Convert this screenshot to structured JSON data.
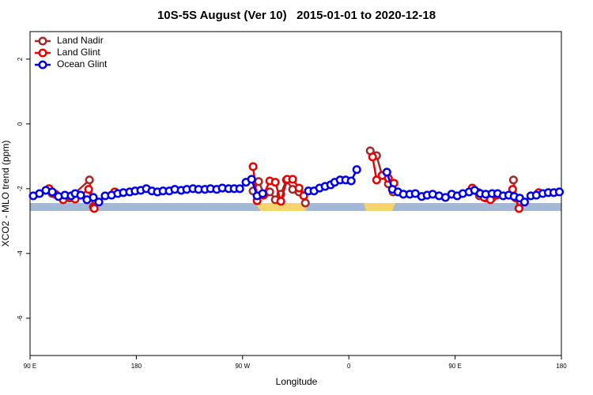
{
  "chart_data": {
    "type": "line",
    "title": "10S-5S August (Ver 10)   2015-01-01 to 2020-12-18",
    "x_label": "Longitude",
    "y_label": "XCO2 - MLO trend (ppm)",
    "xlim": [
      90,
      540
    ],
    "xticks": [
      {
        "value": 90,
        "label": "90 E"
      },
      180,
      {
        "value": 270,
        "label": "90 W"
      },
      {
        "value": 360,
        "label": "0"
      },
      {
        "value": 450,
        "label": "90 E"
      },
      {
        "value": 540,
        "label": "180"
      }
    ],
    "ylim": [
      -7.15,
      2.85
    ],
    "yticks": [
      2,
      0,
      -2,
      -4,
      -6
    ],
    "legend": "top-left",
    "series": [
      {
        "name": "Land Nadir",
        "color": "#a52a2a",
        "x": [
          106.1,
          108.8,
          116.8,
          123.5,
          140.3,
          143.6,
          null,
          278.9,
          283.6,
          288.3,
          293,
          297.7,
          302.4,
          307.1,
          312.4,
          317.8,
          323.2,
          null,
          378.1,
          383.5,
          388.2,
          393.5,
          397.5,
          null,
          465.2,
          470.6,
          475.9,
          481.3,
          null,
          499.4,
          501.4,
          504.1
        ],
        "values": [
          -2.02,
          -2.15,
          -2.27,
          -2.29,
          -1.73,
          -2.56,
          null,
          -2.07,
          -1.78,
          -2.17,
          -2.1,
          -2.34,
          -2.17,
          -1.73,
          -2.02,
          -2.1,
          -2.44,
          null,
          -0.83,
          -0.98,
          -1.59,
          -1.85,
          -2.1,
          null,
          -2.02,
          -2.22,
          -2.29,
          -2.29,
          null,
          -1.73,
          -2.29,
          -2.61
        ]
      },
      {
        "name": "Land Glint",
        "color": "#ee0000",
        "x": [
          106.1,
          111.4,
          118.1,
          128.2,
          139.6,
          144.3,
          null,
          161.7,
          null,
          278.9,
          282.3,
          287.7,
          293,
          297.7,
          302.4,
          307.8,
          312.4,
          317.8,
          321.8,
          null,
          380.1,
          383.5,
          388.2,
          393.5,
          398.2,
          null,
          464.5,
          469.9,
          474.6,
          479.9,
          485.3,
          null,
          498.7,
          504.1,
          null,
          520.8
        ],
        "values": [
          -2.0,
          -2.17,
          -2.34,
          -2.32,
          -2.02,
          -2.61,
          null,
          -2.1,
          null,
          -1.32,
          -2.37,
          -2.2,
          -1.76,
          -1.8,
          -2.39,
          -1.71,
          -1.71,
          -1.98,
          -2.22,
          null,
          -1.02,
          -1.73,
          -1.59,
          -1.68,
          -1.83,
          null,
          -1.98,
          -2.12,
          -2.27,
          -2.34,
          -2.2,
          null,
          -2.02,
          -2.61,
          null,
          -2.12
        ]
      },
      {
        "name": "Ocean Glint",
        "color": "#0000ee",
        "x": [
          92.7,
          98,
          103.4,
          108.8,
          114.1,
          119.5,
          124.8,
          128.2,
          132.9,
          138.2,
          143.6,
          148.3,
          153.6,
          159,
          164.3,
          169,
          174.4,
          179,
          183.8,
          188.5,
          193.2,
          197.9,
          202.6,
          207.9,
          212.6,
          218,
          222.7,
          228,
          232.7,
          238.1,
          242.8,
          248.1,
          252.8,
          258.2,
          262.9,
          267.6,
          272.9,
          277.6,
          282.3,
          287,
          null,
          325.8,
          330.5,
          335.2,
          339.9,
          344.6,
          348,
          352.6,
          357.3,
          362,
          366.7,
          null,
          392.2,
          396.9,
          401.6,
          406.2,
          411.6,
          416.3,
          421.7,
          426.3,
          431,
          436.4,
          441.8,
          447.1,
          451.8,
          456.5,
          461.9,
          466.5,
          471.2,
          475.9,
          481.3,
          486,
          490.7,
          495.4,
          500,
          504.7,
          508.8,
          514.1,
          518.8,
          524.2,
          528.9,
          533.6,
          538.3
        ],
        "values": [
          -2.22,
          -2.15,
          -2.05,
          -2.1,
          -2.24,
          -2.2,
          -2.22,
          -2.15,
          -2.2,
          -2.34,
          -2.27,
          -2.41,
          -2.22,
          -2.2,
          -2.15,
          -2.12,
          -2.1,
          -2.07,
          -2.05,
          -2.0,
          -2.07,
          -2.1,
          -2.07,
          -2.07,
          -2.02,
          -2.05,
          -2.02,
          -2.0,
          -2.02,
          -2.02,
          -2.0,
          -2.02,
          -1.98,
          -2.0,
          -2.0,
          -2.0,
          -1.8,
          -1.71,
          -2.22,
          -2.15,
          null,
          -2.07,
          -2.07,
          -1.98,
          -1.93,
          -1.88,
          -1.8,
          -1.73,
          -1.73,
          -1.76,
          -1.41,
          null,
          -1.49,
          -2.02,
          -2.1,
          -2.17,
          -2.17,
          -2.15,
          -2.24,
          -2.2,
          -2.17,
          -2.22,
          -2.27,
          -2.17,
          -2.22,
          -2.15,
          -2.1,
          -2.05,
          -2.15,
          -2.17,
          -2.15,
          -2.15,
          -2.22,
          -2.2,
          -2.24,
          -2.29,
          -2.41,
          -2.22,
          -2.2,
          -2.15,
          -2.12,
          -2.12,
          -2.1
        ]
      }
    ]
  }
}
